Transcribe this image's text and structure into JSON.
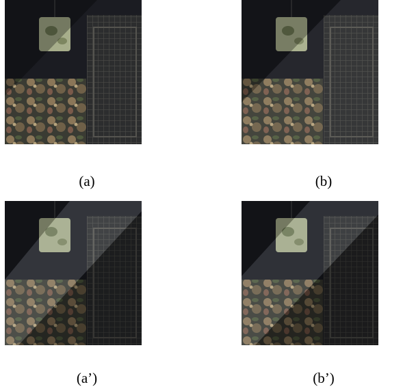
{
  "figure": {
    "panels": [
      {
        "caption": "(a)"
      },
      {
        "caption": "(b)"
      },
      {
        "caption": "(a’)"
      },
      {
        "caption": "(b’)"
      }
    ]
  }
}
